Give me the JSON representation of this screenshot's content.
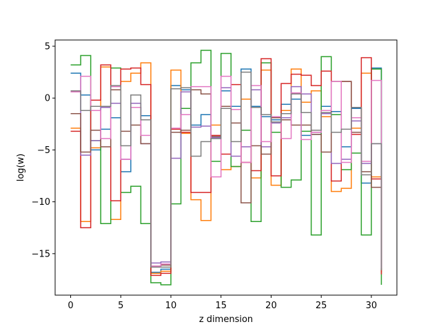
{
  "chart_data": {
    "type": "line",
    "step": "post",
    "xlabel": "z dimension",
    "ylabel": "log(w)",
    "xlim": [
      -1.55,
      32.55
    ],
    "ylim": [
      -19.0,
      5.6
    ],
    "xticks": [
      0,
      5,
      10,
      15,
      20,
      25,
      30
    ],
    "yticks": [
      5,
      0,
      -5,
      -10,
      -15
    ],
    "ytick_labels": [
      "5",
      "0",
      "−5",
      "−10",
      "−15"
    ],
    "grid": false,
    "x": [
      0,
      1,
      2,
      3,
      4,
      5,
      6,
      7,
      8,
      9,
      10,
      11,
      12,
      13,
      14,
      15,
      16,
      17,
      18,
      19,
      20,
      21,
      22,
      23,
      24,
      25,
      26,
      27,
      28,
      29,
      30,
      31
    ],
    "series": [
      {
        "color": "#1f77b4",
        "values": [
          2.4,
          0.3,
          -5.0,
          -3.0,
          -1.9,
          -7.1,
          -0.9,
          -1.7,
          -16.8,
          -16.5,
          1.2,
          0.8,
          -2.6,
          -1.6,
          -3.9,
          0.7,
          -0.8,
          2.8,
          -0.8,
          -1.8,
          -2.1,
          -0.6,
          -0.1,
          -3.6,
          -3.5,
          -0.8,
          -1.3,
          -4.7,
          -1.0,
          -8.2,
          2.9,
          -16.4
        ]
      },
      {
        "color": "#ff7f0e",
        "values": [
          -2.9,
          -11.9,
          -4.8,
          3.0,
          -11.7,
          1.6,
          2.4,
          3.4,
          -16.9,
          -16.7,
          2.7,
          -3.4,
          -9.8,
          -11.8,
          -2.6,
          -6.9,
          -6.6,
          -0.1,
          -7.7,
          2.7,
          -8.4,
          -1.2,
          2.8,
          -0.4,
          0.7,
          -1.8,
          -9.0,
          -8.7,
          -2.9,
          2.4,
          -7.6,
          -16.8
        ]
      },
      {
        "color": "#2ca02c",
        "values": [
          3.2,
          4.1,
          -4.1,
          -12.1,
          2.9,
          -9.1,
          -8.5,
          -12.1,
          -17.8,
          -18.0,
          -10.2,
          -1.0,
          3.4,
          4.6,
          -6.1,
          4.3,
          -6.6,
          -3.1,
          -11.9,
          3.4,
          -3.3,
          -8.6,
          -7.9,
          -3.2,
          -13.2,
          4.0,
          -1.6,
          -6.9,
          -5.3,
          -13.2,
          2.8,
          -18.0
        ]
      },
      {
        "color": "#d62728",
        "values": [
          -3.2,
          -12.5,
          -0.2,
          3.2,
          -9.9,
          2.8,
          2.9,
          1.3,
          -17.1,
          -16.9,
          -3.0,
          -3.3,
          -9.1,
          -9.1,
          -3.6,
          -5.4,
          1.3,
          -6.2,
          -7.0,
          3.8,
          -7.5,
          1.4,
          2.3,
          2.2,
          1.2,
          2.6,
          -8.0,
          1.6,
          -3.5,
          3.9,
          -7.8,
          -17.0
        ]
      },
      {
        "color": "#9467bd",
        "values": [
          0.6,
          -5.5,
          -4.1,
          -0.9,
          -0.5,
          -5.9,
          -0.5,
          -4.4,
          -15.9,
          -15.8,
          -5.8,
          0.6,
          -2.8,
          -2.7,
          -3.8,
          1.0,
          -5.6,
          -4.7,
          0.8,
          -4.7,
          -2.4,
          -1.9,
          1.1,
          0.4,
          -3.3,
          -1.5,
          -6.3,
          -5.9,
          -2.2,
          -6.3,
          -4.4,
          -16.5
        ]
      },
      {
        "color": "#8c564b",
        "values": [
          -1.5,
          -5.2,
          -3.1,
          -4.7,
          0.8,
          -3.2,
          -2.6,
          -4.4,
          -16.2,
          -16.1,
          -3.3,
          -3.1,
          0.8,
          0.4,
          -3.7,
          -0.8,
          -2.4,
          -10.1,
          -4.6,
          -5.4,
          -1.9,
          -2.1,
          -2.6,
          -2.6,
          -3.5,
          -5.2,
          1.6,
          1.6,
          -3.3,
          -7.1,
          -8.6,
          -16.6
        ]
      },
      {
        "color": "#e377c2",
        "values": [
          0.6,
          2.1,
          -1.2,
          -3.9,
          1.1,
          -5.9,
          -0.9,
          -3.6,
          -16.2,
          -16.0,
          -2.9,
          -1.6,
          1.1,
          1.1,
          -7.6,
          2.1,
          -1.1,
          -6.2,
          1.2,
          -4.2,
          -1.8,
          -3.9,
          0.5,
          -4.0,
          -3.3,
          -1.2,
          1.6,
          -6.2,
          -1.9,
          -6.1,
          1.7,
          -16.4
        ]
      },
      {
        "color": "#7f7f7f",
        "values": [
          0.7,
          -1.2,
          -0.8,
          -0.8,
          1.2,
          -4.6,
          0.3,
          -2.1,
          -16.3,
          -16.3,
          0.9,
          1.0,
          -5.6,
          -4.2,
          -3.9,
          -1.0,
          -4.2,
          2.5,
          -0.9,
          -1.6,
          -2.3,
          -1.5,
          0.4,
          -1.4,
          -3.1,
          -1.4,
          -3.3,
          -3.0,
          -0.9,
          -7.4,
          -4.4,
          -16.6
        ]
      }
    ]
  }
}
